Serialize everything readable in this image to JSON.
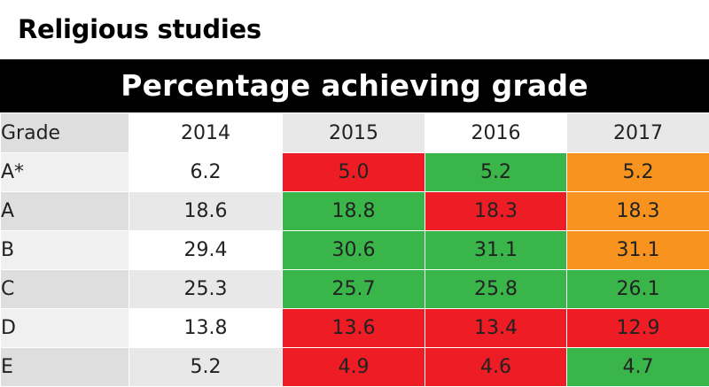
{
  "subject_title": "Religious studies",
  "table_title": "Percentage achieving grade",
  "colors": {
    "red": "#ee1c24",
    "green": "#3ab54a",
    "orange": "#f7931e",
    "row_light": "#f0f0f0",
    "row_dark": "#dedede",
    "col_light": "#ffffff",
    "col_dark": "#e8e8e8"
  },
  "chart_data": {
    "type": "table",
    "columns": [
      "Grade",
      "2014",
      "2015",
      "2016",
      "2017"
    ],
    "rows": [
      {
        "grade": "A*",
        "values": [
          "6.2",
          "5.0",
          "5.2",
          "5.2"
        ],
        "fills": [
          "",
          "red",
          "green",
          "orange"
        ]
      },
      {
        "grade": "A",
        "values": [
          "18.6",
          "18.8",
          "18.3",
          "18.3"
        ],
        "fills": [
          "",
          "green",
          "red",
          "orange"
        ]
      },
      {
        "grade": "B",
        "values": [
          "29.4",
          "30.6",
          "31.1",
          "31.1"
        ],
        "fills": [
          "",
          "green",
          "green",
          "orange"
        ]
      },
      {
        "grade": "C",
        "values": [
          "25.3",
          "25.7",
          "25.8",
          "26.1"
        ],
        "fills": [
          "",
          "green",
          "green",
          "green"
        ]
      },
      {
        "grade": "D",
        "values": [
          "13.8",
          "13.6",
          "13.4",
          "12.9"
        ],
        "fills": [
          "",
          "red",
          "red",
          "red"
        ]
      },
      {
        "grade": "E",
        "values": [
          "5.2",
          "4.9",
          "4.6",
          "4.7"
        ],
        "fills": [
          "",
          "red",
          "red",
          "green"
        ]
      }
    ]
  }
}
